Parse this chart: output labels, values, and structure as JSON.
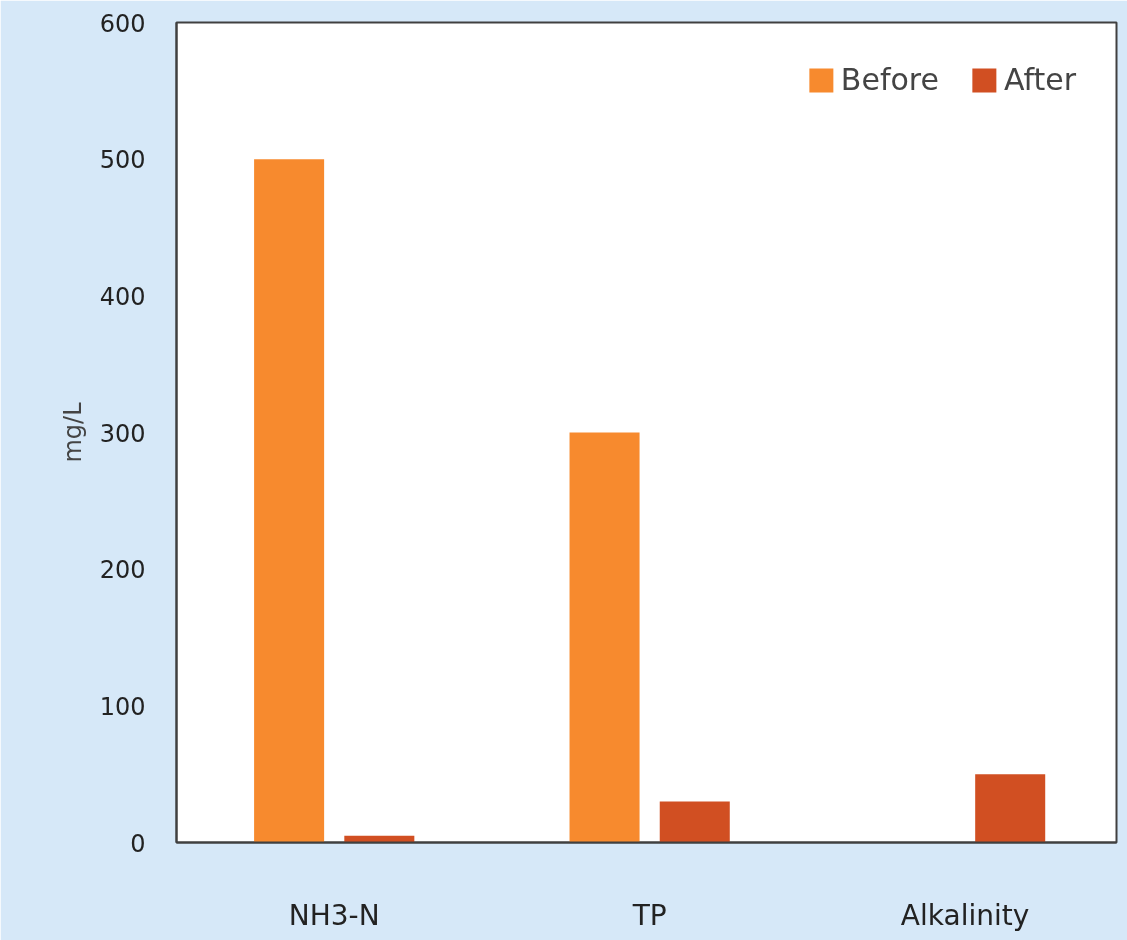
{
  "chart_data": {
    "type": "bar",
    "ylabel": "mg/L",
    "categories": [
      "NH3-N",
      "TP",
      "Alkalinity"
    ],
    "series": [
      {
        "name": "Before",
        "color": "#f78a2e",
        "values": [
          500,
          300,
          null
        ]
      },
      {
        "name": "After",
        "color": "#d14f22",
        "values": [
          5,
          30,
          50
        ]
      }
    ],
    "ylim": [
      0,
      600
    ],
    "yticks": [
      0,
      100,
      200,
      300,
      400,
      500,
      600
    ],
    "grid": false,
    "legend": "top right"
  }
}
